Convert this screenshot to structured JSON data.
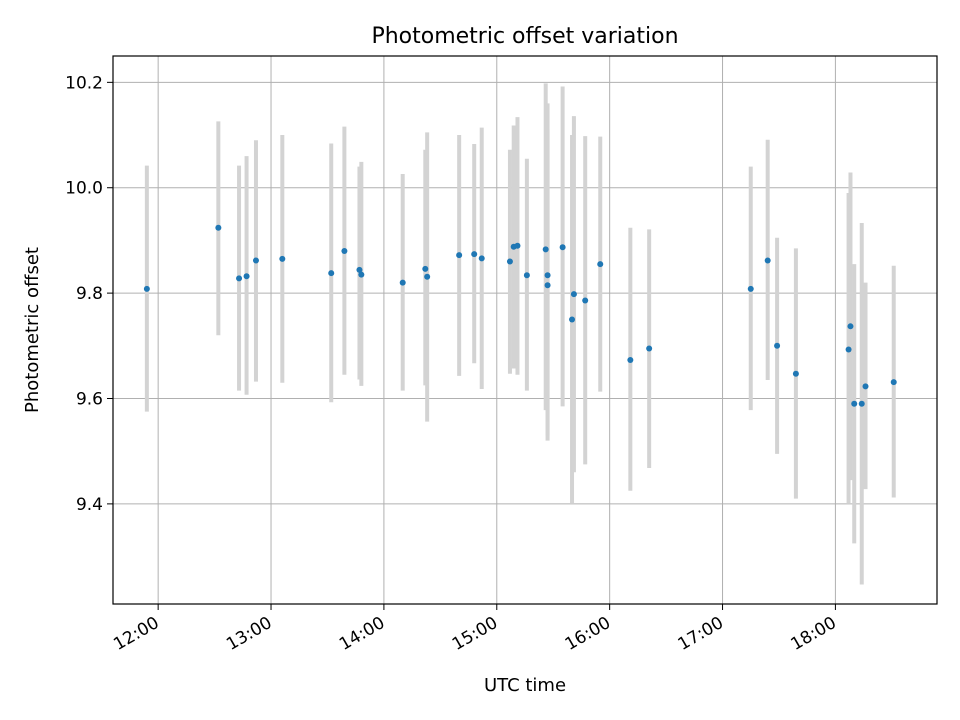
{
  "chart_data": {
    "type": "scatter",
    "title": "Photometric offset variation",
    "xlabel": "UTC time",
    "ylabel": "Photometric offset",
    "xlim": [
      "11:36",
      "18:54"
    ],
    "ylim": [
      9.21,
      10.25
    ],
    "x_ticks": [
      "12:00",
      "13:00",
      "14:00",
      "15:00",
      "16:00",
      "17:00",
      "18:00"
    ],
    "y_ticks": [
      9.4,
      9.6,
      9.8,
      10.0,
      10.2
    ],
    "y_tick_labels": [
      "9.4",
      "9.6",
      "9.8",
      "10.0",
      "10.2"
    ],
    "grid": true,
    "point_color": "#1f77b4",
    "errorbar_color": "#d3d3d3",
    "points": [
      {
        "t": "11:54",
        "y": 9.808,
        "lo": 9.575,
        "hi": 10.042
      },
      {
        "t": "12:32",
        "y": 9.924,
        "lo": 9.72,
        "hi": 10.126
      },
      {
        "t": "12:43",
        "y": 9.828,
        "lo": 9.615,
        "hi": 10.042
      },
      {
        "t": "12:47",
        "y": 9.832,
        "lo": 9.607,
        "hi": 10.06
      },
      {
        "t": "12:52",
        "y": 9.862,
        "lo": 9.632,
        "hi": 10.09
      },
      {
        "t": "13:06",
        "y": 9.865,
        "lo": 9.63,
        "hi": 10.1
      },
      {
        "t": "13:32",
        "y": 9.838,
        "lo": 9.593,
        "hi": 10.084
      },
      {
        "t": "13:39",
        "y": 9.88,
        "lo": 9.645,
        "hi": 10.116
      },
      {
        "t": "13:47",
        "y": 9.844,
        "lo": 9.636,
        "hi": 10.04
      },
      {
        "t": "13:48",
        "y": 9.835,
        "lo": 9.624,
        "hi": 10.049
      },
      {
        "t": "14:10",
        "y": 9.82,
        "lo": 9.615,
        "hi": 10.026
      },
      {
        "t": "14:22",
        "y": 9.846,
        "lo": 9.625,
        "hi": 10.072
      },
      {
        "t": "14:23",
        "y": 9.831,
        "lo": 9.556,
        "hi": 10.105
      },
      {
        "t": "14:40",
        "y": 9.872,
        "lo": 9.643,
        "hi": 10.1
      },
      {
        "t": "14:48",
        "y": 9.874,
        "lo": 9.667,
        "hi": 10.083
      },
      {
        "t": "14:52",
        "y": 9.866,
        "lo": 9.618,
        "hi": 10.114
      },
      {
        "t": "15:07",
        "y": 9.86,
        "lo": 9.647,
        "hi": 10.072
      },
      {
        "t": "15:09",
        "y": 9.888,
        "lo": 9.657,
        "hi": 10.118
      },
      {
        "t": "15:11",
        "y": 9.89,
        "lo": 9.645,
        "hi": 10.134
      },
      {
        "t": "15:16",
        "y": 9.834,
        "lo": 9.615,
        "hi": 10.055
      },
      {
        "t": "15:26",
        "y": 9.883,
        "lo": 9.578,
        "hi": 10.198
      },
      {
        "t": "15:27",
        "y": 9.834,
        "lo": 9.52,
        "hi": 10.16
      },
      {
        "t": "15:27",
        "y": 9.815,
        "lo": 9.53,
        "hi": 10.11
      },
      {
        "t": "15:35",
        "y": 9.887,
        "lo": 9.585,
        "hi": 10.192
      },
      {
        "t": "15:40",
        "y": 9.75,
        "lo": 9.4,
        "hi": 10.1
      },
      {
        "t": "15:41",
        "y": 9.798,
        "lo": 9.46,
        "hi": 10.136
      },
      {
        "t": "15:47",
        "y": 9.786,
        "lo": 9.475,
        "hi": 10.098
      },
      {
        "t": "15:55",
        "y": 9.855,
        "lo": 9.613,
        "hi": 10.097
      },
      {
        "t": "16:11",
        "y": 9.673,
        "lo": 9.425,
        "hi": 9.924
      },
      {
        "t": "16:21",
        "y": 9.695,
        "lo": 9.468,
        "hi": 9.921
      },
      {
        "t": "17:15",
        "y": 9.808,
        "lo": 9.578,
        "hi": 10.04
      },
      {
        "t": "17:24",
        "y": 9.862,
        "lo": 9.635,
        "hi": 10.091
      },
      {
        "t": "17:29",
        "y": 9.7,
        "lo": 9.495,
        "hi": 9.905
      },
      {
        "t": "17:39",
        "y": 9.647,
        "lo": 9.41,
        "hi": 9.885
      },
      {
        "t": "18:07",
        "y": 9.693,
        "lo": 9.4,
        "hi": 9.99
      },
      {
        "t": "18:08",
        "y": 9.737,
        "lo": 9.445,
        "hi": 10.029
      },
      {
        "t": "18:10",
        "y": 9.59,
        "lo": 9.325,
        "hi": 9.855
      },
      {
        "t": "18:14",
        "y": 9.59,
        "lo": 9.247,
        "hi": 9.933
      },
      {
        "t": "18:16",
        "y": 9.623,
        "lo": 9.428,
        "hi": 9.82
      },
      {
        "t": "18:31",
        "y": 9.631,
        "lo": 9.412,
        "hi": 9.852
      }
    ]
  }
}
